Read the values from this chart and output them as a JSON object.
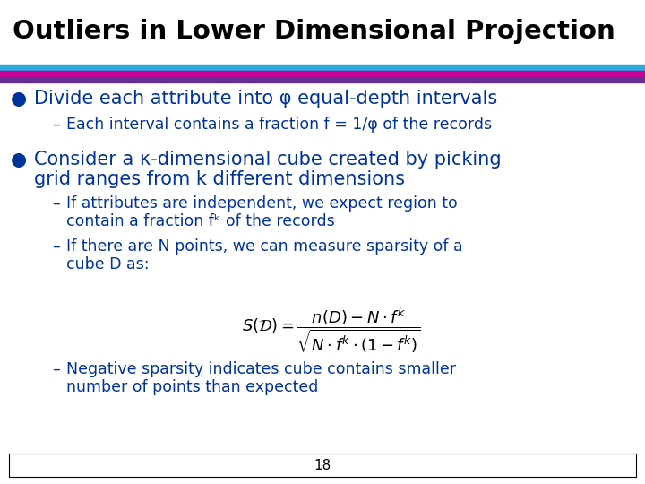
{
  "title": "Outliers in Lower Dimensional Projection",
  "title_color": "#000000",
  "title_bg": "#ffffff",
  "title_fontsize": 21,
  "title_fontweight": "bold",
  "stripe1_color": "#29ABE2",
  "stripe2_color": "#CC0099",
  "stripe3_color": "#662D91",
  "bg_color": "#ffffff",
  "bullet_color": "#003399",
  "text_color": "#333333",
  "bullet1": "Divide each attribute into φ equal-depth intervals",
  "sub1_1": "Each interval contains a fraction f = 1/φ of the records",
  "bullet2_line1": "Consider a κ-dimensional cube created by picking",
  "bullet2_line2": "grid ranges from k different dimensions",
  "sub2_1_line1": "If attributes are independent, we expect region to",
  "sub2_1_line2": "contain a fraction fᵏ of the records",
  "sub2_2_line1": "If there are N points, we can measure sparsity of a",
  "sub2_2_line2": "cube D as:",
  "formula": "$S(\\mathcal{D}) = \\dfrac{n(D) - N \\cdot f^k}{\\sqrt{N \\cdot f^k \\cdot (1 - f^k)}}$",
  "sub2_3_line1": "Negative sparsity indicates cube contains smaller",
  "sub2_3_line2": "number of points than expected",
  "page_number": "18",
  "footer_rect_color": "#ffffff",
  "footer_rect_edge": "#000000",
  "fig_width": 7.2,
  "fig_height": 5.4,
  "dpi": 100
}
